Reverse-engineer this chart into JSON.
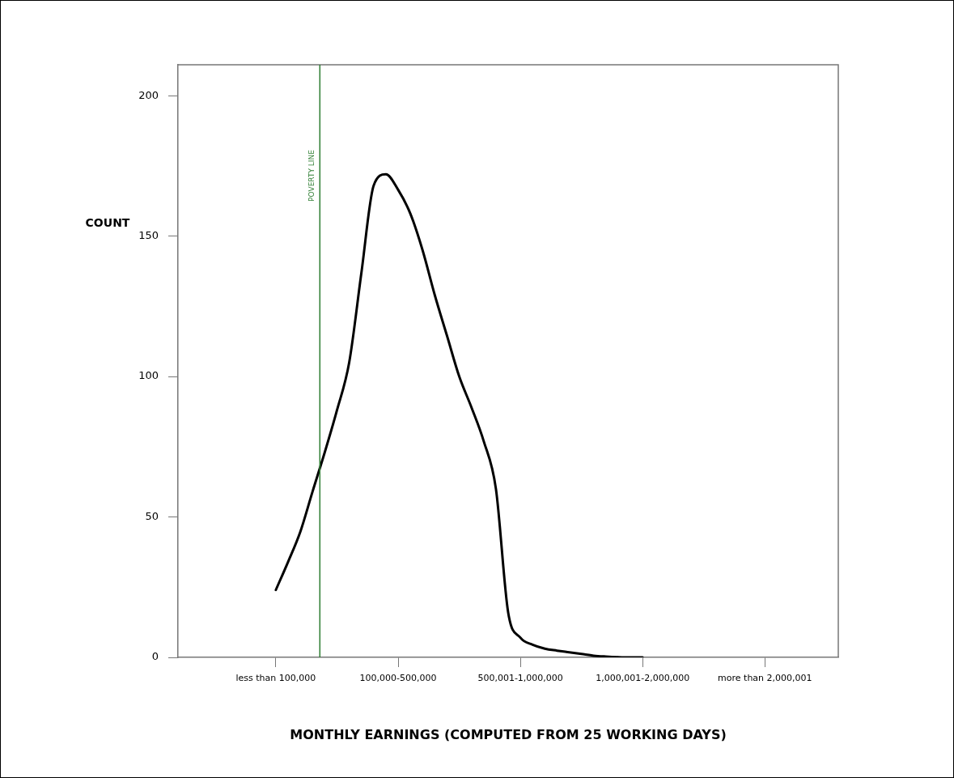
{
  "chart_data": {
    "type": "line",
    "xlabel": "MONTHLY EARNINGS (COMPUTED FROM 25 WORKING DAYS)",
    "ylabel": "COUNT",
    "categories": [
      null,
      null,
      null,
      null,
      null,
      null,
      null,
      null,
      "less than 100,000",
      null,
      null,
      null,
      null,
      null,
      null,
      null,
      null,
      null,
      "100,000-500,000",
      null,
      null,
      null,
      null,
      null,
      null,
      null,
      null,
      null,
      "500,001-1,000,000",
      null,
      null,
      null,
      null,
      null,
      null,
      null,
      null,
      null,
      "1,000,001-2,000,000",
      null,
      null,
      null,
      null,
      null,
      null,
      null,
      null,
      null,
      "more than 2,000,001",
      null,
      null,
      null,
      null,
      null,
      null
    ],
    "ylim": [
      0,
      211
    ],
    "yticks": [
      0,
      50,
      100,
      150,
      200
    ],
    "series": [
      {
        "color": "#000000",
        "values": [
          null,
          null,
          null,
          null,
          null,
          null,
          null,
          null,
          24,
          34,
          44.7,
          59,
          73,
          88,
          105,
          137,
          168,
          172,
          166.5,
          158,
          145,
          129,
          114.5,
          100,
          89,
          77,
          60,
          16,
          7,
          4.5,
          3.1,
          2.4,
          1.8,
          1.2,
          0.6,
          0.3,
          0.1,
          0,
          0,
          null,
          null,
          null,
          null,
          null,
          null,
          null,
          null,
          null,
          null,
          null,
          null,
          null,
          null,
          null,
          null
        ]
      }
    ],
    "annotations": [
      "POVERTY LINE"
    ],
    "grid": false,
    "legend": false,
    "marker": "none",
    "line_style": "solid"
  }
}
